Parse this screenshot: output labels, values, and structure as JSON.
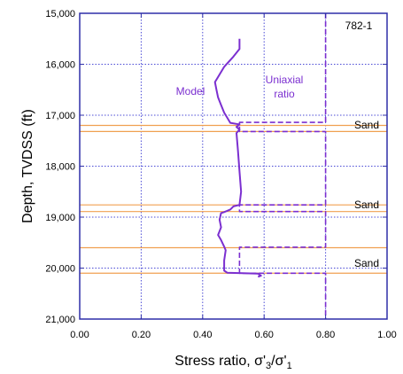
{
  "chart_data": {
    "type": "line",
    "panel_label": "782-1",
    "xlabel": {
      "main": "Stress ratio, ",
      "s1": "σ'",
      "sub1": "3",
      "slash": "/",
      "s2": "σ'",
      "sub2": "1"
    },
    "ylabel": "Depth, TVDSS (ft)",
    "xlim": [
      0,
      1
    ],
    "ylim": [
      15000,
      21000
    ],
    "y_inverted": true,
    "grid": true,
    "x_ticks": [
      0,
      0.2,
      0.4,
      0.6,
      0.8,
      1.0
    ],
    "x_tick_labels": [
      "0.00",
      "0.20",
      "0.40",
      "0.60",
      "0.80",
      "1.00"
    ],
    "y_ticks": [
      15000,
      16000,
      17000,
      18000,
      19000,
      20000,
      21000
    ],
    "y_tick_labels": [
      "15,000",
      "16,000",
      "17,000",
      "18,000",
      "19,000",
      "20,000",
      "21,000"
    ],
    "colors": {
      "model": "#7b2fd0",
      "sand": "#f0a050",
      "grid": "#4b4bd6",
      "frame": "#2e2ea8"
    },
    "series": [
      {
        "name": "Model",
        "style": "solid",
        "points": [
          [
            0.52,
            15500
          ],
          [
            0.52,
            15700
          ],
          [
            0.5,
            15850
          ],
          [
            0.47,
            16050
          ],
          [
            0.45,
            16250
          ],
          [
            0.44,
            16350
          ],
          [
            0.445,
            16500
          ],
          [
            0.45,
            16650
          ],
          [
            0.46,
            16800
          ],
          [
            0.47,
            16950
          ],
          [
            0.48,
            17050
          ],
          [
            0.49,
            17150
          ],
          [
            0.51,
            17170
          ],
          [
            0.52,
            17180
          ],
          [
            0.51,
            17230
          ],
          [
            0.52,
            17280
          ],
          [
            0.51,
            17350
          ],
          [
            0.515,
            17700
          ],
          [
            0.52,
            18100
          ],
          [
            0.525,
            18500
          ],
          [
            0.52,
            18760
          ],
          [
            0.5,
            18790
          ],
          [
            0.49,
            18850
          ],
          [
            0.47,
            18900
          ],
          [
            0.46,
            18920
          ],
          [
            0.455,
            19050
          ],
          [
            0.46,
            19200
          ],
          [
            0.45,
            19350
          ],
          [
            0.46,
            19450
          ],
          [
            0.47,
            19580
          ],
          [
            0.475,
            19650
          ],
          [
            0.47,
            19850
          ],
          [
            0.47,
            20050
          ],
          [
            0.48,
            20090
          ],
          [
            0.58,
            20110
          ],
          [
            0.59,
            20150
          ],
          [
            0.58,
            20170
          ]
        ]
      },
      {
        "name": "Uniaxial ratio",
        "style": "dashed",
        "points": [
          [
            0.8,
            15000
          ],
          [
            0.8,
            17140
          ],
          [
            0.52,
            17140
          ],
          [
            0.52,
            17320
          ],
          [
            0.8,
            17320
          ],
          [
            0.8,
            18760
          ],
          [
            0.52,
            18760
          ],
          [
            0.52,
            18890
          ],
          [
            0.8,
            18890
          ],
          [
            0.8,
            19590
          ],
          [
            0.52,
            19590
          ],
          [
            0.52,
            20100
          ],
          [
            0.8,
            20100
          ],
          [
            0.8,
            21000
          ]
        ]
      }
    ],
    "sand_intervals": [
      {
        "label": "Sand",
        "top": 17200,
        "base": 17320
      },
      {
        "label": "Sand",
        "top": 18760,
        "base": 18890
      },
      {
        "label": "Sand",
        "top": 19600,
        "base": 20100
      }
    ],
    "annotations": {
      "model_label": "Model",
      "uniaxial_label_line1": "Uniaxial",
      "uniaxial_label_line2": "ratio"
    }
  }
}
